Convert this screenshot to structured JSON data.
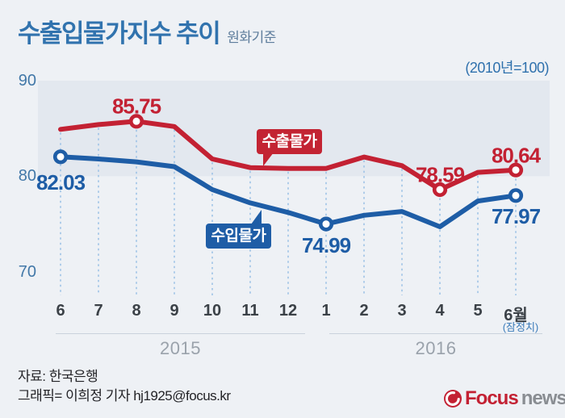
{
  "header": {
    "title": "수출입물가지수 추이",
    "subtitle": "원화기준",
    "unit_note": "(2010년=100)"
  },
  "chart_data": {
    "type": "line",
    "title": "수출입물가지수 추이",
    "categories": [
      "6",
      "7",
      "8",
      "9",
      "10",
      "11",
      "12",
      "1",
      "2",
      "3",
      "4",
      "5",
      "6월"
    ],
    "provisional_note": "(잠정치)",
    "y_ticks": [
      90,
      80,
      70
    ],
    "ylim": [
      68,
      92
    ],
    "band": {
      "from": 80,
      "to": 90
    },
    "years": [
      {
        "label": "2015",
        "span": [
          0,
          6
        ]
      },
      {
        "label": "2016",
        "span": [
          7,
          12
        ]
      }
    ],
    "series": [
      {
        "name": "수출물가",
        "color": "#c32133",
        "values": [
          84.9,
          85.4,
          85.75,
          85.2,
          81.8,
          80.9,
          80.8,
          80.8,
          82.0,
          81.1,
          78.59,
          80.4,
          80.64
        ],
        "markers": [
          2,
          10,
          12
        ]
      },
      {
        "name": "수입물가",
        "color": "#1e5da6",
        "values": [
          82.03,
          81.8,
          81.5,
          81.0,
          78.6,
          77.2,
          76.2,
          74.99,
          75.9,
          76.3,
          74.7,
          77.4,
          77.97
        ],
        "markers": [
          0,
          7,
          12
        ]
      }
    ],
    "value_labels": [
      {
        "series": 0,
        "index": 2,
        "text": "85.75",
        "side": "above"
      },
      {
        "series": 0,
        "index": 10,
        "text": "78.59",
        "side": "above"
      },
      {
        "series": 0,
        "index": 12,
        "text": "80.64",
        "side": "above"
      },
      {
        "series": 1,
        "index": 0,
        "text": "82.03",
        "side": "below",
        "dy": 6
      },
      {
        "series": 1,
        "index": 7,
        "text": "74.99",
        "side": "below"
      },
      {
        "series": 1,
        "index": 12,
        "text": "77.97",
        "side": "below"
      }
    ],
    "colors": {
      "band": "#e3e8ef",
      "dash": "#9ec3e6",
      "background": "#eef1f5"
    },
    "legend_position": "inline-badges",
    "grid": "vertical-dashed"
  },
  "footer": {
    "source": "자료: 한국은행",
    "credit": "그래픽= 이희정 기자 hj1925@focus.kr",
    "logo": {
      "brand": "Focus",
      "suffix": "news"
    }
  }
}
